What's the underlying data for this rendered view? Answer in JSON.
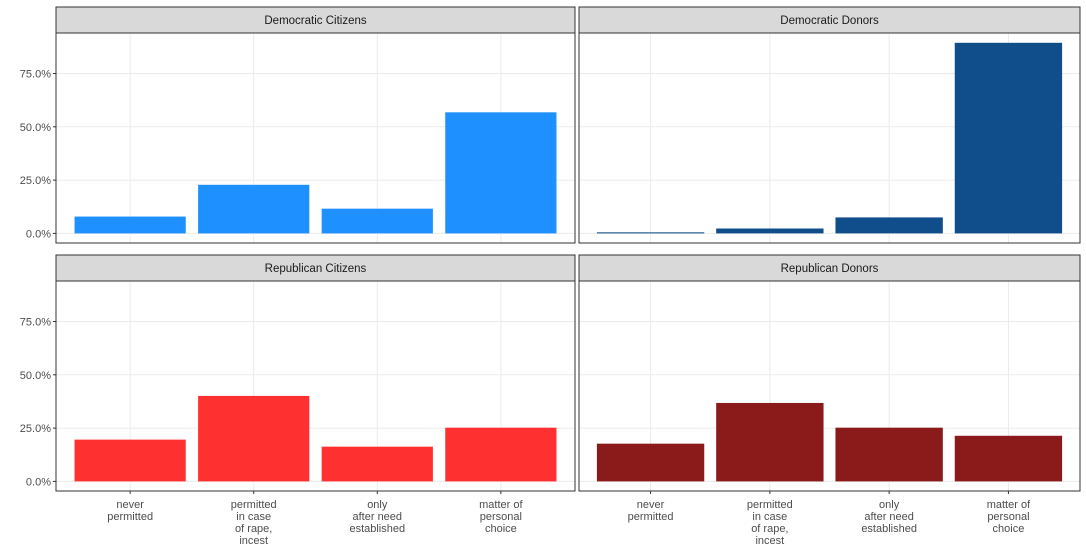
{
  "chart_data": [
    {
      "type": "bar",
      "title": "Democratic Citizens",
      "values": [
        7.9,
        22.8,
        11.6,
        56.8
      ],
      "color": "#1e90ff",
      "ylim": [
        -4.5,
        94
      ],
      "yticks": [
        {
          "value": 0,
          "label": "0.0%"
        },
        {
          "value": 25,
          "label": "25.0%"
        },
        {
          "value": 50,
          "label": "50.0%"
        },
        {
          "value": 75,
          "label": "75.0%"
        }
      ],
      "grid": true
    },
    {
      "type": "bar",
      "title": "Democratic Donors",
      "values": [
        0.5,
        2.3,
        7.5,
        89.4
      ],
      "color": "#104e8b",
      "ylim": [
        -4.5,
        94
      ],
      "yticks": [
        0,
        25,
        50,
        75
      ],
      "grid": true
    },
    {
      "type": "bar",
      "title": "Republican Citizens",
      "categories": [
        "never\npermitted",
        "permitted\nin case\nof rape,\nincest",
        "only\nafter need\nestablished",
        "matter of\npersonal\nchoice"
      ],
      "values": [
        19.6,
        40.1,
        16.3,
        25.2
      ],
      "color": "#ff3030",
      "ylim": [
        -4.5,
        94
      ],
      "yticks": [
        {
          "value": 0,
          "label": "0.0%"
        },
        {
          "value": 25,
          "label": "25.0%"
        },
        {
          "value": 50,
          "label": "50.0%"
        },
        {
          "value": 75,
          "label": "75.0%"
        }
      ],
      "grid": true
    },
    {
      "type": "bar",
      "title": "Republican Donors",
      "categories": [
        "never\npermitted",
        "permitted\nin case\nof rape,\nincest",
        "only\nafter need\nestablished",
        "matter of\npersonal\nchoice"
      ],
      "values": [
        17.7,
        36.8,
        25.2,
        21.4
      ],
      "color": "#8b1a1a",
      "ylim": [
        -4.5,
        94
      ],
      "yticks": [
        0,
        25,
        50,
        75
      ],
      "grid": true
    }
  ]
}
